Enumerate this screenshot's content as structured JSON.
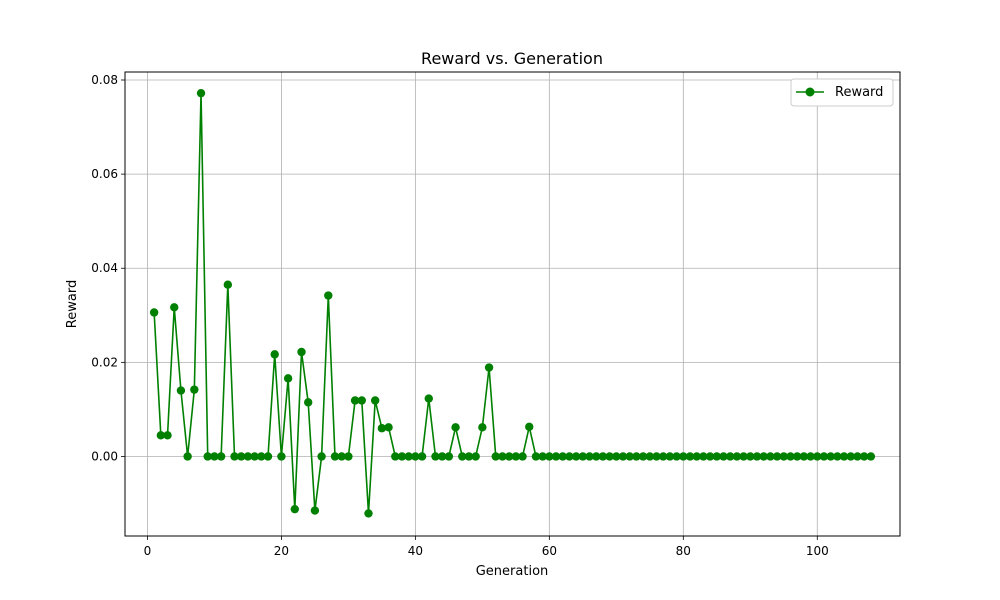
{
  "chart_data": {
    "type": "line",
    "title": "Reward vs. Generation",
    "xlabel": "Generation",
    "ylabel": "Reward",
    "xlim": [
      -3.35,
      112.35
    ],
    "ylim": [
      -0.0169,
      0.0817
    ],
    "xticks": [
      0,
      20,
      40,
      60,
      80,
      100
    ],
    "yticks": [
      0.0,
      0.02,
      0.04,
      0.06,
      0.08
    ],
    "xtick_labels": [
      "0",
      "20",
      "40",
      "60",
      "80",
      "100"
    ],
    "ytick_labels": [
      "0.00",
      "0.02",
      "0.04",
      "0.06",
      "0.08"
    ],
    "grid": true,
    "legend": {
      "position": "top-right"
    },
    "series": [
      {
        "name": "Reward",
        "color": "#008000",
        "marker": "circle",
        "x": [
          1,
          2,
          3,
          4,
          5,
          6,
          7,
          8,
          9,
          10,
          11,
          12,
          13,
          14,
          15,
          16,
          17,
          18,
          19,
          20,
          21,
          22,
          23,
          24,
          25,
          26,
          27,
          28,
          29,
          30,
          31,
          32,
          33,
          34,
          35,
          36,
          37,
          38,
          39,
          40,
          41,
          42,
          43,
          44,
          45,
          46,
          47,
          48,
          49,
          50,
          51,
          52,
          53,
          54,
          55,
          56,
          57,
          58,
          59,
          60,
          61,
          62,
          63,
          64,
          65,
          66,
          67,
          68,
          69,
          70,
          71,
          72,
          73,
          74,
          75,
          76,
          77,
          78,
          79,
          80,
          81,
          82,
          83,
          84,
          85,
          86,
          87,
          88,
          89,
          90,
          91,
          92,
          93,
          94,
          95,
          96,
          97,
          98,
          99,
          100,
          101,
          102,
          103,
          104,
          105,
          106,
          107,
          108
        ],
        "y": [
          0.0306,
          0.0045,
          0.0045,
          0.0317,
          0.014,
          0.0,
          0.0142,
          0.0772,
          0.0,
          0.0,
          0.0,
          0.0365,
          0.0,
          0.0,
          0.0,
          0.0,
          0.0,
          0.0,
          0.0217,
          0.0,
          0.0166,
          -0.0112,
          0.0222,
          0.0115,
          -0.0115,
          0.0,
          0.0342,
          0.0,
          0.0,
          0.0,
          0.0119,
          0.0119,
          -0.0121,
          0.0119,
          0.006,
          0.0062,
          0.0,
          0.0,
          0.0,
          0.0,
          0.0,
          0.0123,
          0.0,
          0.0,
          0.0,
          0.0062,
          0.0,
          0.0,
          0.0,
          0.0062,
          0.0189,
          0.0,
          0.0,
          0.0,
          0.0,
          0.0,
          0.0063,
          0.0,
          0.0,
          0.0,
          0.0,
          0.0,
          0.0,
          0.0,
          0.0,
          0.0,
          0.0,
          0.0,
          0.0,
          0.0,
          0.0,
          0.0,
          0.0,
          0.0,
          0.0,
          0.0,
          0.0,
          0.0,
          0.0,
          0.0,
          0.0,
          0.0,
          0.0,
          0.0,
          0.0,
          0.0,
          0.0,
          0.0,
          0.0,
          0.0,
          0.0,
          0.0,
          0.0,
          0.0,
          0.0,
          0.0,
          0.0,
          0.0,
          0.0,
          0.0,
          0.0,
          0.0,
          0.0,
          0.0,
          0.0,
          0.0,
          0.0,
          0.0
        ]
      }
    ]
  }
}
